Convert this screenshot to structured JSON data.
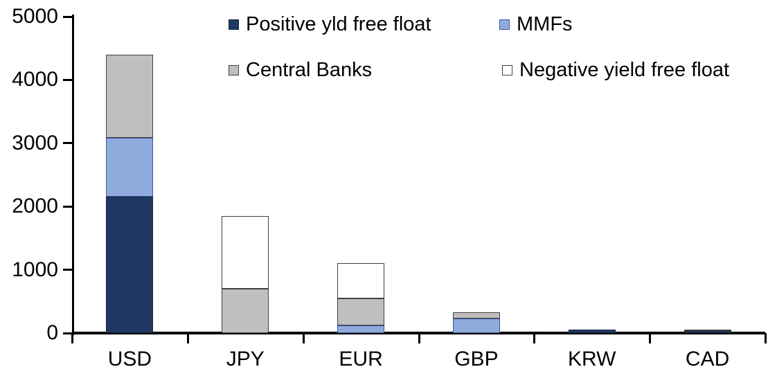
{
  "chart_data": {
    "type": "bar",
    "stacked": true,
    "categories": [
      "USD",
      "JPY",
      "EUR",
      "GBP",
      "KRW",
      "CAD"
    ],
    "series": [
      {
        "name": "Positive yld free float",
        "color": "#1F3864",
        "border": "#17253F",
        "values": [
          2150,
          0,
          0,
          0,
          50,
          35
        ]
      },
      {
        "name": "MMFs",
        "color": "#8FAADC",
        "border": "#3B5A97",
        "values": [
          930,
          0,
          120,
          230,
          0,
          0
        ]
      },
      {
        "name": "Central Banks",
        "color": "#BFBFBF",
        "border": "#404040",
        "values": [
          1320,
          700,
          430,
          100,
          0,
          25
        ]
      },
      {
        "name": "Negative yield free float",
        "color": "#FFFFFF",
        "border": "#404040",
        "values": [
          0,
          1150,
          560,
          0,
          0,
          0
        ]
      }
    ],
    "ylim": [
      0,
      5000
    ],
    "yticks": [
      0,
      1000,
      2000,
      3000,
      4000,
      5000
    ],
    "legend_position": "top",
    "axis_color": "#000000",
    "background_color": "#FFFFFF"
  }
}
